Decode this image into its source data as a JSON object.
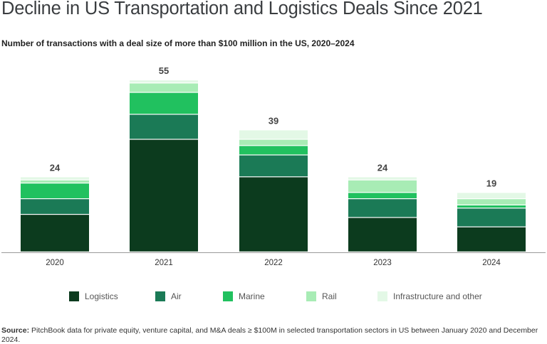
{
  "title": "Decline in US Transportation and Logistics Deals Since 2021",
  "subtitle": "Number of transactions with a deal size of more than $100 million in the US, 2020–2024",
  "chart_data": {
    "type": "bar",
    "stacked": true,
    "categories": [
      "2020",
      "2021",
      "2022",
      "2023",
      "2024"
    ],
    "totals": [
      24,
      55,
      39,
      24,
      19
    ],
    "series": [
      {
        "name": "Logistics",
        "color": "#0c3b1e",
        "values": [
          12,
          36,
          24,
          11,
          8
        ]
      },
      {
        "name": "Air",
        "color": "#1b7a56",
        "values": [
          5,
          8,
          7,
          6,
          6
        ]
      },
      {
        "name": "Marine",
        "color": "#21c15f",
        "values": [
          5,
          7,
          3,
          2,
          1
        ]
      },
      {
        "name": "Rail",
        "color": "#a8ecb5",
        "values": [
          1,
          3,
          2,
          4,
          2
        ]
      },
      {
        "name": "Infrastructure and other",
        "color": "#e3f8e6",
        "values": [
          1,
          1,
          3,
          1,
          2
        ]
      }
    ],
    "ylim": [
      0,
      60
    ],
    "xlabel": "",
    "ylabel": "",
    "legend_position": "bottom"
  },
  "source": {
    "label": "Source:",
    "text": "PitchBook data for private equity, venture capital, and M&A deals ≥ $100M in selected transportation sectors in US between January 2020 and December 2024."
  }
}
